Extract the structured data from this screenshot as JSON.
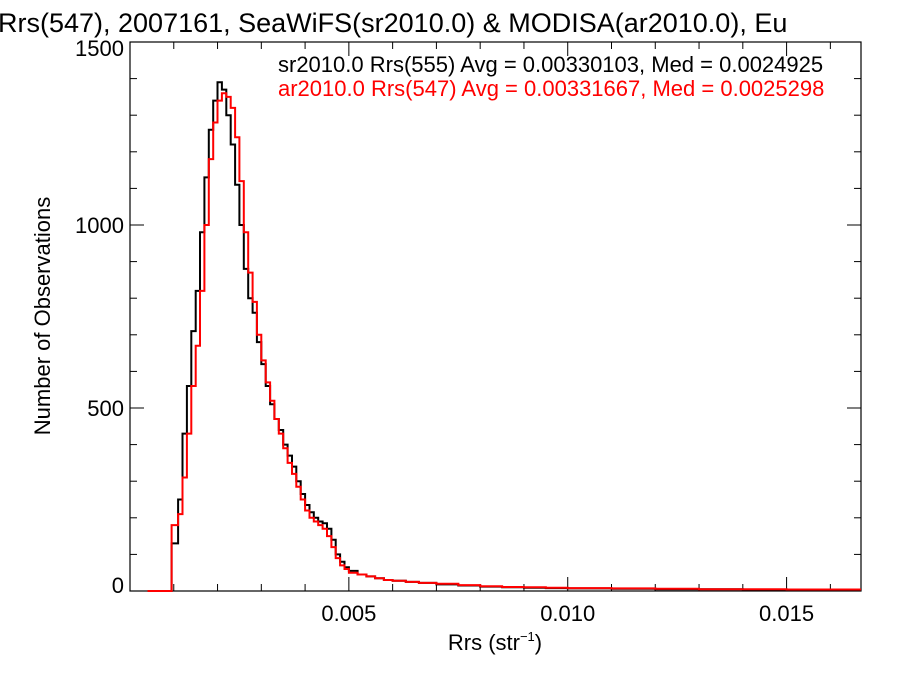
{
  "chart_data": {
    "type": "line",
    "title": "Rrs(547), 2007161, SeaWiFS(sr2010.0) & MODISA(ar2010.0), Eu",
    "xlabel": "Rrs (str",
    "xlabel_sup": "−1",
    "xlabel_close": ")",
    "ylabel": "Number of Observations",
    "xlim": [
      0.0,
      0.0167
    ],
    "ylim": [
      0,
      1500
    ],
    "xticks": [
      {
        "value": 0.005,
        "label": "0.005"
      },
      {
        "value": 0.01,
        "label": "0.010"
      },
      {
        "value": 0.015,
        "label": "0.015"
      }
    ],
    "yticks": [
      {
        "value": 0,
        "label": "0"
      },
      {
        "value": 500,
        "label": "500"
      },
      {
        "value": 1000,
        "label": "1000"
      },
      {
        "value": 1500,
        "label": "1500"
      }
    ],
    "grid": false,
    "legend_position": "top-right",
    "series": [
      {
        "name": "sr2010.0 Rrs(555) Avg = 0.00330103, Med = 0.0024925",
        "color": "#000000",
        "x": [
          0.0004,
          0.0006,
          0.0008,
          0.00095,
          0.0011,
          0.0012,
          0.0013,
          0.0014,
          0.0015,
          0.0016,
          0.0017,
          0.0018,
          0.0019,
          0.002,
          0.0021,
          0.0022,
          0.0023,
          0.0024,
          0.0025,
          0.0026,
          0.0027,
          0.0028,
          0.0029,
          0.003,
          0.0031,
          0.0032,
          0.0033,
          0.0034,
          0.0035,
          0.0036,
          0.0037,
          0.0038,
          0.0039,
          0.004,
          0.0041,
          0.0042,
          0.0043,
          0.0044,
          0.0045,
          0.0046,
          0.0047,
          0.0048,
          0.0049,
          0.005,
          0.0052,
          0.0054,
          0.0056,
          0.0058,
          0.006,
          0.0063,
          0.0066,
          0.007,
          0.0075,
          0.008,
          0.0085,
          0.009,
          0.0095,
          0.01,
          0.011,
          0.012,
          0.013,
          0.014,
          0.015,
          0.016,
          0.0167
        ],
        "y": [
          0,
          0,
          0,
          130,
          250,
          430,
          560,
          710,
          820,
          980,
          1130,
          1260,
          1340,
          1390,
          1370,
          1300,
          1220,
          1110,
          1000,
          880,
          800,
          760,
          680,
          620,
          560,
          510,
          470,
          440,
          400,
          370,
          340,
          300,
          265,
          235,
          215,
          200,
          190,
          185,
          170,
          140,
          100,
          80,
          65,
          55,
          45,
          40,
          35,
          30,
          28,
          25,
          22,
          18,
          15,
          12,
          10,
          9,
          8,
          7,
          6,
          5,
          5,
          4,
          4,
          4,
          4
        ]
      },
      {
        "name": "ar2010.0 Rrs(547) Avg = 0.00331667, Med = 0.0025298",
        "color": "#ff0000",
        "x": [
          0.0004,
          0.0006,
          0.0008,
          0.00095,
          0.0011,
          0.0012,
          0.0013,
          0.0014,
          0.0015,
          0.0016,
          0.0017,
          0.0018,
          0.0019,
          0.002,
          0.0021,
          0.0022,
          0.0023,
          0.0024,
          0.0025,
          0.0026,
          0.0027,
          0.0028,
          0.0029,
          0.003,
          0.0031,
          0.0032,
          0.0033,
          0.0034,
          0.0035,
          0.0036,
          0.0037,
          0.0038,
          0.0039,
          0.004,
          0.0041,
          0.0042,
          0.0043,
          0.0044,
          0.0045,
          0.0046,
          0.0047,
          0.0048,
          0.0049,
          0.005,
          0.0052,
          0.0054,
          0.0056,
          0.0058,
          0.006,
          0.0063,
          0.0066,
          0.007,
          0.0075,
          0.008,
          0.0085,
          0.009,
          0.0095,
          0.01,
          0.011,
          0.012,
          0.013,
          0.014,
          0.015,
          0.016,
          0.0167
        ],
        "y": [
          0,
          0,
          0,
          180,
          210,
          310,
          430,
          560,
          670,
          820,
          1000,
          1180,
          1280,
          1340,
          1360,
          1350,
          1320,
          1240,
          1120,
          980,
          870,
          790,
          700,
          630,
          570,
          520,
          470,
          430,
          390,
          350,
          320,
          285,
          250,
          220,
          200,
          190,
          180,
          170,
          150,
          120,
          90,
          70,
          60,
          50,
          45,
          40,
          35,
          30,
          28,
          25,
          22,
          20,
          16,
          13,
          11,
          10,
          9,
          8,
          7,
          6,
          5,
          5,
          4,
          4,
          4
        ]
      }
    ]
  }
}
